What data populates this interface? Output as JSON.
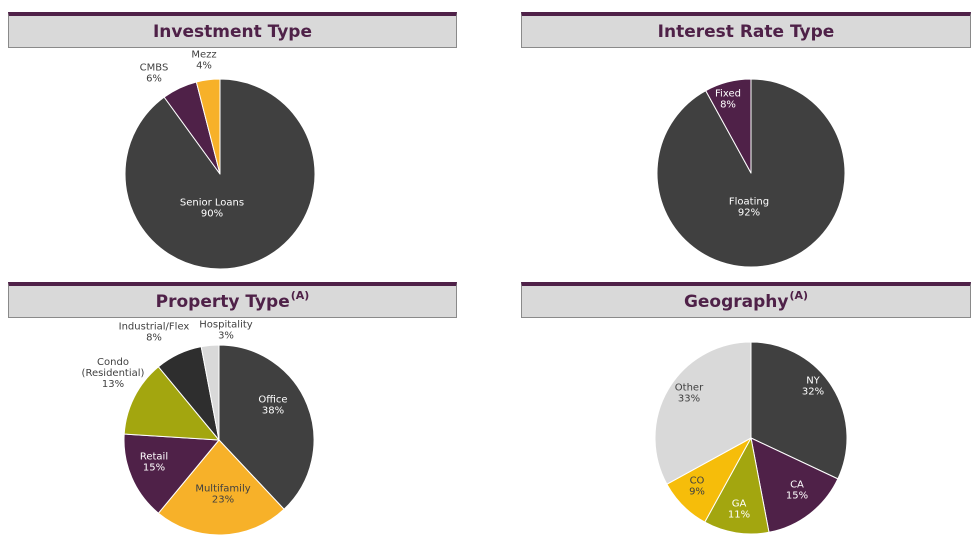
{
  "colors": {
    "purple": "#4f2148",
    "dark_gray": "#404040",
    "orange": "#f7b129",
    "olive": "#a3a60f",
    "gold": "#f6bd0a",
    "charcoal": "#2e2e2e",
    "light_gray": "#d9d9d9",
    "header_bg": "#d9d9d9"
  },
  "chart_data": [
    {
      "id": "investment",
      "type": "pie",
      "title": "Investment Type",
      "title_sup": "",
      "slices": [
        {
          "name": "Senior Loans",
          "value": 90,
          "label": "90%",
          "color": "#404040",
          "text_color": "#ffffff"
        },
        {
          "name": "CMBS",
          "value": 6,
          "label": "6%",
          "color": "#4f2148",
          "text_color": "#404040"
        },
        {
          "name": "Mezz",
          "value": 4,
          "label": "4%",
          "color": "#f7b129",
          "text_color": "#404040"
        }
      ]
    },
    {
      "id": "interest",
      "type": "pie",
      "title": "Interest Rate Type",
      "title_sup": "",
      "slices": [
        {
          "name": "Floating",
          "value": 92,
          "label": "92%",
          "color": "#404040",
          "text_color": "#ffffff"
        },
        {
          "name": "Fixed",
          "value": 8,
          "label": "8%",
          "color": "#4f2148",
          "text_color": "#ffffff"
        }
      ]
    },
    {
      "id": "property",
      "type": "pie",
      "title": "Property Type",
      "title_sup": "(A)",
      "slices": [
        {
          "name": "Office",
          "value": 38,
          "label": "38%",
          "color": "#404040",
          "text_color": "#ffffff"
        },
        {
          "name": "Multifamily",
          "value": 23,
          "label": "23%",
          "color": "#f7b129",
          "text_color": "#404040"
        },
        {
          "name": "Retail",
          "value": 15,
          "label": "15%",
          "color": "#4f2148",
          "text_color": "#ffffff"
        },
        {
          "name": "Condo (Residential)",
          "value": 13,
          "label": "13%",
          "color": "#a3a60f",
          "text_color": "#404040"
        },
        {
          "name": "Industrial/Flex",
          "value": 8,
          "label": "8%",
          "color": "#2e2e2e",
          "text_color": "#404040"
        },
        {
          "name": "Hospitality",
          "value": 3,
          "label": "3%",
          "color": "#d9d9d9",
          "text_color": "#404040"
        }
      ]
    },
    {
      "id": "geography",
      "type": "pie",
      "title": "Geography",
      "title_sup": "(A)",
      "slices": [
        {
          "name": "NY",
          "value": 32,
          "label": "32%",
          "color": "#404040",
          "text_color": "#ffffff"
        },
        {
          "name": "CA",
          "value": 15,
          "label": "15%",
          "color": "#4f2148",
          "text_color": "#ffffff"
        },
        {
          "name": "GA",
          "value": 11,
          "label": "11%",
          "color": "#a3a60f",
          "text_color": "#ffffff"
        },
        {
          "name": "CO",
          "value": 9,
          "label": "9%",
          "color": "#f6bd0a",
          "text_color": "#404040"
        },
        {
          "name": "Other",
          "value": 33,
          "label": "33%",
          "color": "#d9d9d9",
          "text_color": "#404040"
        }
      ]
    }
  ]
}
